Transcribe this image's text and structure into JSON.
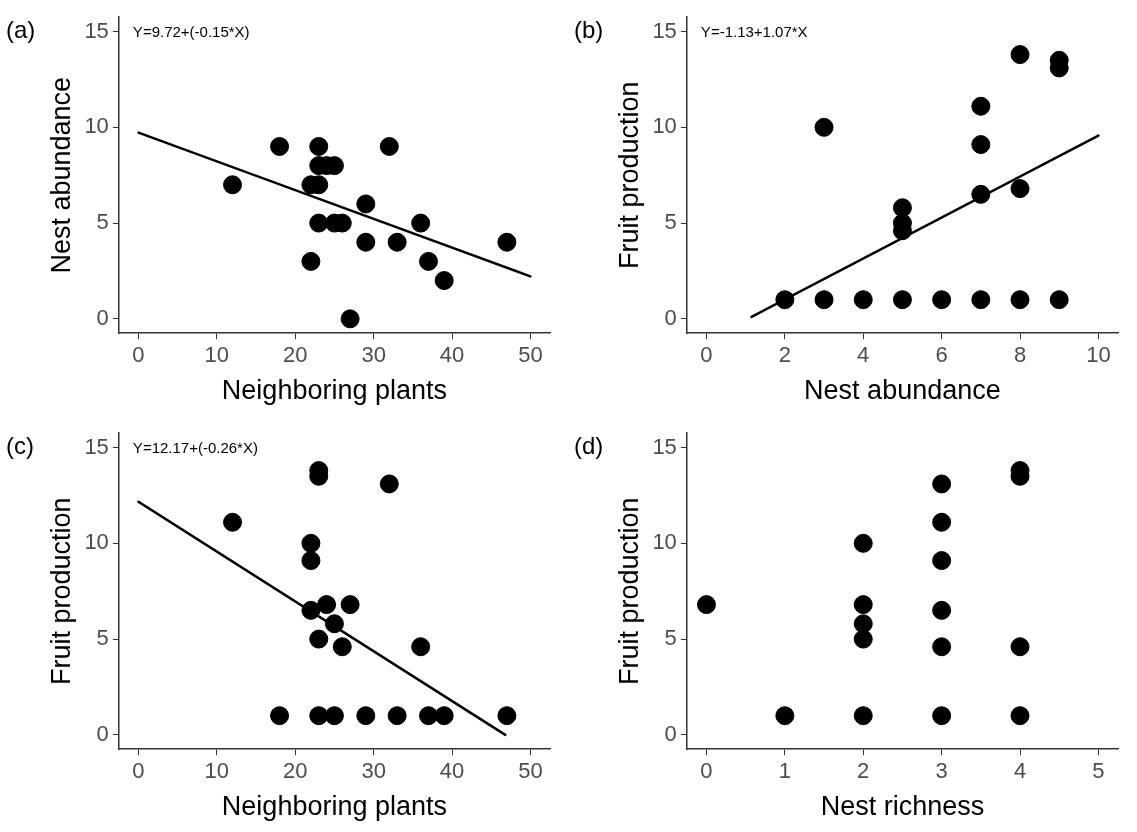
{
  "chart_data": [
    {
      "type": "scatter",
      "title": "(a)",
      "xlabel": "Neighboring plants",
      "ylabel": "Nest abundance",
      "annotations": [
        "Y=9.72+(-0.15*X)"
      ],
      "marker": "circle",
      "xlim": [
        -2.5,
        52.5
      ],
      "xticks": [
        0,
        10,
        20,
        30,
        40,
        50
      ],
      "ylim": [
        -0.75,
        15.75
      ],
      "yticks": [
        0,
        5,
        10,
        15
      ],
      "series": [
        {
          "color": "#000000",
          "x": [
            12,
            18,
            22,
            23,
            23,
            23,
            24,
            25,
            23,
            25,
            26,
            22,
            27,
            29,
            29,
            32,
            33,
            36,
            37,
            39,
            47
          ],
          "values": [
            7,
            9,
            7,
            7,
            9,
            8,
            8,
            8,
            5,
            5,
            5,
            3,
            0,
            6,
            4,
            9,
            4,
            5,
            3,
            2,
            4
          ]
        },
        {
          "type": "line",
          "marker": "none",
          "color": "#000000",
          "x": [
            0,
            50
          ],
          "values": [
            9.72,
            2.22
          ]
        }
      ]
    },
    {
      "type": "scatter",
      "title": "(b)",
      "xlabel": "Nest abundance",
      "ylabel": "Fruit production",
      "annotations": [
        "Y=-1.13+1.07*X"
      ],
      "marker": "circle",
      "xlim": [
        -0.5,
        10.5
      ],
      "xticks": [
        0,
        2,
        4,
        6,
        8,
        10
      ],
      "ylim": [
        -0.75,
        15.75
      ],
      "yticks": [
        0,
        5,
        10,
        15
      ],
      "series": [
        {
          "color": "#000000",
          "x": [
            2,
            3,
            4,
            5,
            6,
            7,
            8,
            9,
            3,
            5,
            5,
            5,
            7,
            7,
            7,
            8,
            8,
            9,
            9
          ],
          "values": [
            1,
            1,
            1,
            1,
            1,
            1,
            1,
            1,
            10,
            5.8,
            5,
            4.6,
            11.1,
            9.1,
            6.5,
            13.8,
            6.8,
            13.5,
            13.1
          ]
        },
        {
          "type": "line",
          "marker": "none",
          "color": "#000000",
          "x": [
            1.15,
            10
          ],
          "values": [
            0.1,
            9.57
          ]
        }
      ]
    },
    {
      "type": "scatter",
      "title": "(c)",
      "xlabel": "Neighboring plants",
      "ylabel": "Fruit production",
      "annotations": [
        "Y=12.17+(-0.26*X)"
      ],
      "marker": "circle",
      "xlim": [
        -2.5,
        52.5
      ],
      "xticks": [
        0,
        10,
        20,
        30,
        40,
        50
      ],
      "ylim": [
        -0.75,
        15.75
      ],
      "yticks": [
        0,
        5,
        10,
        15
      ],
      "series": [
        {
          "color": "#000000",
          "x": [
            12,
            22,
            22,
            22,
            23,
            23,
            32,
            24,
            27,
            25,
            23,
            26,
            36,
            18,
            23,
            25,
            29,
            33,
            37,
            39,
            47
          ],
          "values": [
            11.1,
            10,
            9.1,
            6.5,
            13.8,
            13.5,
            13.1,
            6.8,
            6.8,
            5.8,
            5,
            4.6,
            4.6,
            1,
            1,
            1,
            1,
            1,
            1,
            1,
            1
          ]
        },
        {
          "type": "line",
          "marker": "none",
          "color": "#000000",
          "x": [
            0,
            46.8
          ],
          "values": [
            12.17,
            0
          ]
        }
      ]
    },
    {
      "type": "scatter",
      "title": "(d)",
      "xlabel": "Nest richness",
      "ylabel": "Fruit production",
      "marker": "circle",
      "xlim": [
        -0.25,
        5.25
      ],
      "xticks": [
        0,
        1,
        2,
        3,
        4,
        5
      ],
      "ylim": [
        -0.75,
        15.75
      ],
      "yticks": [
        0,
        5,
        10,
        15
      ],
      "series": [
        {
          "color": "#000000",
          "x": [
            0,
            1,
            2,
            2,
            2,
            2,
            2,
            3,
            3,
            3,
            3,
            3,
            3,
            4,
            4,
            4,
            4
          ],
          "values": [
            6.8,
            1,
            10,
            6.8,
            5.8,
            5,
            1,
            13.1,
            11.1,
            9.1,
            6.5,
            4.6,
            1,
            13.8,
            13.5,
            4.6,
            1
          ]
        }
      ]
    }
  ]
}
